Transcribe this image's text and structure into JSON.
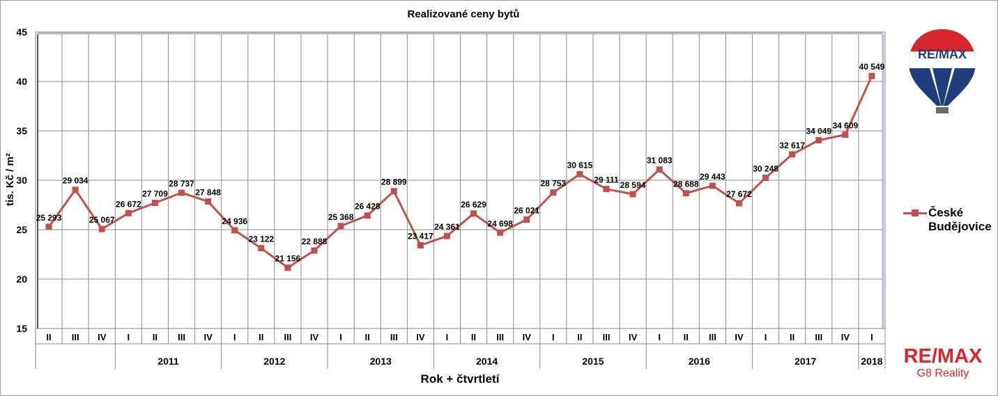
{
  "chart_data": {
    "type": "line",
    "title": "Realizované ceny bytů",
    "xlabel": "Rok + čtvrtletí",
    "ylabel": "tis. Kč / m²",
    "ylim": [
      15,
      45
    ],
    "y_ticks": [
      "15",
      "20",
      "25",
      "30",
      "35",
      "40",
      "45"
    ],
    "grid": true,
    "legend_position": "right",
    "quarters": [
      "II",
      "III",
      "IV",
      "I",
      "II",
      "III",
      "IV",
      "I",
      "II",
      "III",
      "IV",
      "I",
      "II",
      "III",
      "IV",
      "I",
      "II",
      "III",
      "IV",
      "I",
      "II",
      "III",
      "IV",
      "I",
      "II",
      "III",
      "IV",
      "I",
      "II",
      "III",
      "IV",
      "I"
    ],
    "years": [
      {
        "label": "",
        "count": 3
      },
      {
        "label": "2011",
        "count": 4
      },
      {
        "label": "2012",
        "count": 4
      },
      {
        "label": "2013",
        "count": 4
      },
      {
        "label": "2014",
        "count": 4
      },
      {
        "label": "2015",
        "count": 4
      },
      {
        "label": "2016",
        "count": 4
      },
      {
        "label": "2017",
        "count": 4
      },
      {
        "label": "2018",
        "count": 1
      }
    ],
    "series": [
      {
        "name": "České Budějovice",
        "color": "#c0504d",
        "values": [
          25.293,
          29.034,
          25.067,
          26.672,
          27.709,
          28.737,
          27.848,
          24.936,
          23.122,
          21.156,
          22.888,
          25.368,
          26.428,
          28.899,
          23.417,
          24.361,
          26.629,
          24.698,
          26.021,
          28.753,
          30.615,
          29.111,
          28.594,
          31.083,
          28.688,
          29.443,
          27.672,
          30.248,
          32.617,
          34.049,
          34.609,
          40.549
        ],
        "labels": [
          "25 293",
          "29 034",
          "25 067",
          "26 672",
          "27 709",
          "28 737",
          "27 848",
          "24 936",
          "23 122",
          "21 156",
          "22 888",
          "25 368",
          "26 428",
          "28 899",
          "23 417",
          "24 361",
          "26 629",
          "24 698",
          "26 021",
          "28 753",
          "30 615",
          "29 111",
          "28 594",
          "31 083",
          "28 688",
          "29 443",
          "27 672",
          "30 248",
          "32 617",
          "34 049",
          "34 609",
          "40 549"
        ]
      }
    ]
  },
  "legend": {
    "line1": "České",
    "line2": "Budějovice"
  },
  "branding": {
    "balloon_text": "RE/MAX",
    "brand_name": "RE/MAX",
    "brand_sub": "G8 Reality"
  }
}
